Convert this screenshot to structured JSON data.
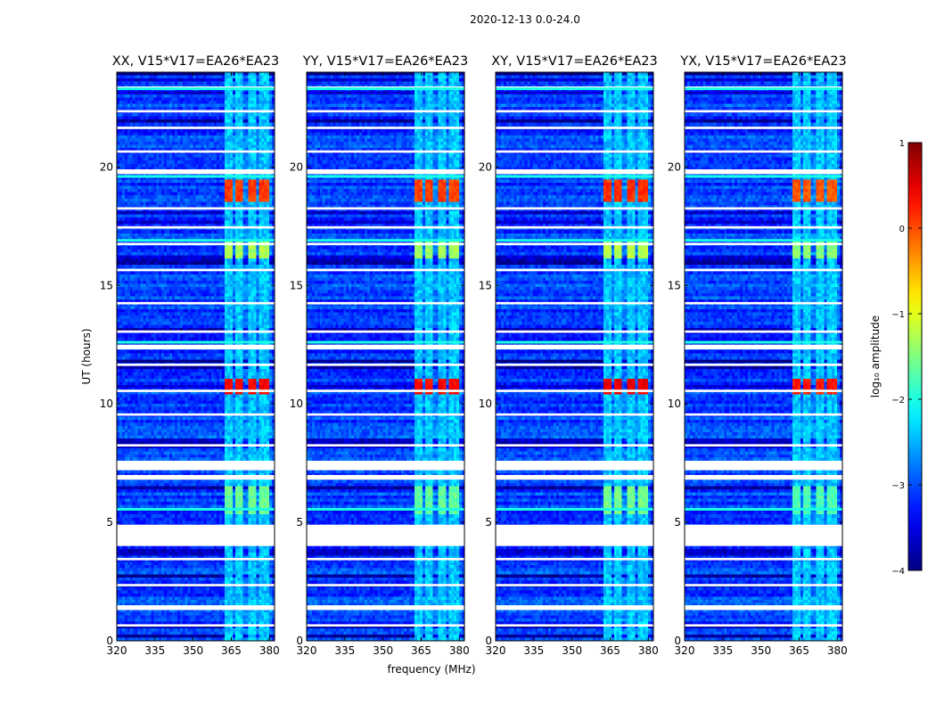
{
  "chart_data": {
    "type": "heatmap",
    "suptitle": "2020-12-13 0.0-24.0",
    "xlabel": "frequency (MHz)",
    "ylabel": "UT (hours)",
    "xlim": [
      320,
      382
    ],
    "ylim": [
      0,
      24
    ],
    "xticks": [
      320,
      335,
      350,
      365,
      380
    ],
    "yticks": [
      0,
      5,
      10,
      15,
      20
    ],
    "panels": [
      {
        "title": "XX, V15*V17=EA26*EA23",
        "bright_level": 0.15
      },
      {
        "title": "YY, V15*V17=EA26*EA23",
        "bright_level": 0.1
      },
      {
        "title": "XY, V15*V17=EA26*EA23",
        "bright_level": 0.2
      },
      {
        "title": "YX, V15*V17=EA26*EA23",
        "bright_level": 0.0
      }
    ],
    "colorbar": {
      "label": "log₁₀ amplitude",
      "colormap": "jet",
      "range": [
        -4,
        1
      ],
      "ticks": [
        "1",
        "0",
        "−1",
        "−2",
        "−3",
        "−4"
      ]
    },
    "background_level": -3.1,
    "rfi_channels_mhz": [
      364,
      368,
      373,
      378
    ],
    "rfi_hot_hours": [
      {
        "from": 18.6,
        "to": 19.4,
        "level": 0.1
      },
      {
        "from": 10.4,
        "to": 11.1,
        "level": 0.4
      },
      {
        "from": 16.2,
        "to": 16.9,
        "level": -1.3
      },
      {
        "from": 5.3,
        "to": 6.5,
        "level": -1.6
      }
    ],
    "flagged_hours": [
      [
        4.0,
        4.9
      ],
      [
        12.3,
        12.5
      ],
      [
        7.2,
        7.6
      ],
      [
        16.7,
        16.8
      ],
      [
        15.6,
        15.7
      ],
      [
        19.7,
        19.9
      ],
      [
        23.3,
        23.4
      ],
      [
        22.3,
        22.4
      ],
      [
        1.3,
        1.5
      ],
      [
        2.3,
        2.4
      ],
      [
        3.4,
        3.5
      ],
      [
        6.8,
        7.0
      ],
      [
        9.5,
        9.6
      ],
      [
        8.2,
        8.3
      ],
      [
        13.0,
        13.1
      ],
      [
        14.2,
        14.3
      ],
      [
        17.4,
        17.5
      ],
      [
        18.2,
        18.3
      ],
      [
        20.6,
        20.7
      ],
      [
        21.6,
        21.7
      ],
      [
        0.6,
        0.7
      ],
      [
        11.6,
        11.7
      ],
      [
        10.5,
        10.6
      ]
    ],
    "bright_rows_hours": [
      23.3,
      12.6,
      5.55,
      16.9,
      19.6
    ]
  }
}
